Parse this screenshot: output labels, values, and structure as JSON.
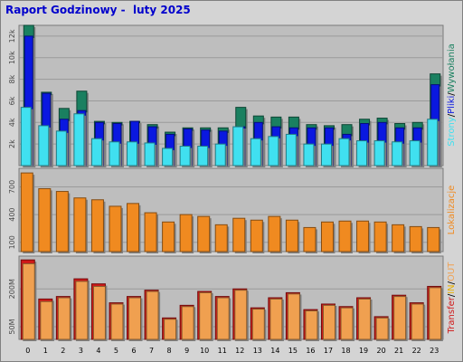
{
  "title": "Raport Godzinowy -  luty 2025",
  "colors": {
    "strony": "#1a8060",
    "pliki": "#0a18e0",
    "wywolania": "#40e0f0",
    "lokalizacje": "#f08a20",
    "in": "#e8b000",
    "out": "#f0a050",
    "transfer": "#d01818",
    "panel_bg": "#bebebe",
    "frame_bg": "#d4d4d4",
    "title": "#0000cc"
  },
  "chart_data": [
    {
      "type": "bar",
      "name": "Strony/Pliki/Wywołania",
      "categories": [
        "0",
        "1",
        "2",
        "3",
        "4",
        "5",
        "6",
        "7",
        "8",
        "9",
        "10",
        "11",
        "12",
        "13",
        "14",
        "15",
        "16",
        "17",
        "18",
        "19",
        "20",
        "21",
        "22",
        "23"
      ],
      "ylim": [
        0,
        13000
      ],
      "yticks": [
        "2k",
        "4k",
        "6k",
        "8k",
        "10k",
        "12k"
      ],
      "ytick_values": [
        2000,
        4000,
        6000,
        8000,
        10000,
        12000
      ],
      "series": [
        {
          "name": "Strony",
          "values": [
            13000,
            6800,
            5300,
            6900,
            4100,
            4000,
            4100,
            3800,
            3100,
            3500,
            3500,
            3500,
            5400,
            4600,
            4500,
            4500,
            3800,
            3700,
            3800,
            4300,
            4400,
            3900,
            4000,
            8500
          ]
        },
        {
          "name": "Pliki",
          "values": [
            12000,
            6700,
            4300,
            5100,
            4000,
            3900,
            4100,
            3600,
            2900,
            3400,
            3300,
            3200,
            3600,
            4000,
            3600,
            3500,
            3500,
            3500,
            2900,
            3900,
            4000,
            3500,
            3500,
            7500
          ]
        },
        {
          "name": "Wywołania",
          "values": [
            5400,
            3700,
            3200,
            4800,
            2500,
            2200,
            2200,
            2100,
            1600,
            1800,
            1800,
            2000,
            3600,
            2500,
            2700,
            2900,
            2000,
            2000,
            2500,
            2300,
            2300,
            2200,
            2300,
            4300
          ]
        }
      ],
      "side_label": [
        "Strony",
        "/",
        "Pliki",
        "/",
        "Wywołania"
      ]
    },
    {
      "type": "bar",
      "name": "Lokalizacje",
      "categories": [
        "0",
        "1",
        "2",
        "3",
        "4",
        "5",
        "6",
        "7",
        "8",
        "9",
        "10",
        "11",
        "12",
        "13",
        "14",
        "15",
        "16",
        "17",
        "18",
        "19",
        "20",
        "21",
        "22",
        "23"
      ],
      "ylim": [
        0,
        900
      ],
      "yticks": [
        "100",
        "400",
        "700"
      ],
      "ytick_values": [
        100,
        400,
        700
      ],
      "series": [
        {
          "name": "Lokalizacje",
          "values": [
            850,
            680,
            650,
            580,
            560,
            490,
            520,
            420,
            320,
            400,
            380,
            290,
            360,
            340,
            380,
            340,
            260,
            320,
            330,
            330,
            320,
            290,
            270,
            260
          ]
        }
      ],
      "side_label": [
        "Lokalizacje"
      ]
    },
    {
      "type": "bar",
      "name": "Transfer IN/OUT",
      "categories": [
        "0",
        "1",
        "2",
        "3",
        "4",
        "5",
        "6",
        "7",
        "8",
        "9",
        "10",
        "11",
        "12",
        "13",
        "14",
        "15",
        "16",
        "17",
        "18",
        "19",
        "20",
        "21",
        "22",
        "23"
      ],
      "ylim": [
        0,
        330
      ],
      "yticks": [
        "50M",
        "200M"
      ],
      "ytick_values": [
        50,
        200
      ],
      "series": [
        {
          "name": "Transfer",
          "values": [
            315,
            160,
            170,
            240,
            220,
            145,
            170,
            195,
            85,
            135,
            190,
            170,
            200,
            125,
            165,
            185,
            118,
            140,
            130,
            165,
            90,
            175,
            145,
            210
          ]
        },
        {
          "name": "OUT",
          "values": [
            300,
            150,
            165,
            230,
            210,
            140,
            165,
            190,
            80,
            130,
            185,
            165,
            195,
            120,
            160,
            180,
            113,
            135,
            125,
            160,
            85,
            170,
            140,
            205
          ]
        }
      ],
      "side_label": [
        "Transfer",
        "/",
        "IN",
        "/",
        "OUT"
      ]
    }
  ],
  "x_ticks": [
    "0",
    "1",
    "2",
    "3",
    "4",
    "5",
    "6",
    "7",
    "8",
    "9",
    "10",
    "11",
    "12",
    "13",
    "14",
    "15",
    "16",
    "17",
    "18",
    "19",
    "20",
    "21",
    "22",
    "23"
  ]
}
